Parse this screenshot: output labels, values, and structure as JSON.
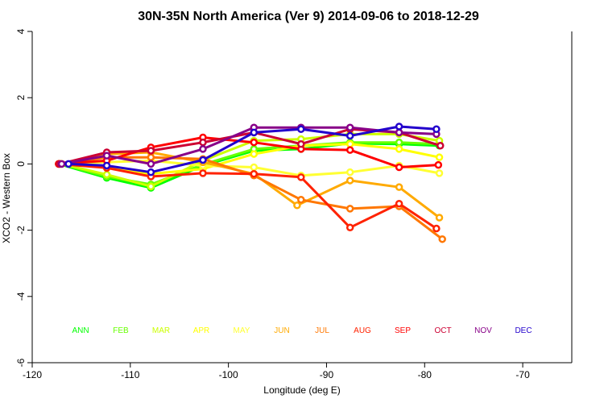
{
  "chart_data": {
    "type": "line",
    "title": "30N-35N North America (Ver 9)   2014-09-06 to 2018-12-29",
    "xlabel": "Longitude (deg E)",
    "ylabel": "XCO2 - Western Box",
    "xlim": [
      -120,
      -65
    ],
    "ylim": [
      -6,
      4
    ],
    "xticks": [
      -120,
      -110,
      -100,
      -90,
      -80,
      -70
    ],
    "yticks": [
      -6,
      -4,
      -2,
      0,
      2,
      4
    ],
    "grid": false,
    "legend_position": "bottom (inside plot, single row)",
    "series": [
      {
        "name": "ANN",
        "color": "#00ff00",
        "x": [
          -117.3,
          -112.4,
          -107.9,
          -102.6,
          -97.4,
          -92.6,
          -87.6,
          -82.6,
          -78.5
        ],
        "y": [
          0,
          -0.42,
          -0.72,
          -0.05,
          0.4,
          0.45,
          0.62,
          0.6,
          0.55
        ]
      },
      {
        "name": "FEB",
        "color": "#66ff00",
        "x": [
          -117.1,
          -112.4,
          -107.9,
          -102.6,
          -97.4,
          -92.6,
          -87.6,
          -82.6,
          -78.5
        ],
        "y": [
          0,
          -0.38,
          -0.62,
          -0.02,
          0.45,
          0.55,
          0.65,
          0.65,
          0.6
        ]
      },
      {
        "name": "MAR",
        "color": "#ccff00",
        "x": [
          -117.0,
          -112.4,
          -107.9,
          -102.6,
          -97.4,
          -92.6,
          -87.6,
          -82.6,
          -78.5
        ],
        "y": [
          0,
          -0.32,
          -0.68,
          0.1,
          0.7,
          0.75,
          0.9,
          0.9,
          0.7
        ]
      },
      {
        "name": "APR",
        "color": "#ffff00",
        "x": [
          -117.0,
          -112.4,
          -107.9,
          -102.6,
          -97.4,
          -92.6,
          -87.6,
          -82.6,
          -78.5
        ],
        "y": [
          0,
          -0.1,
          -0.3,
          -0.15,
          0.3,
          0.55,
          0.6,
          0.45,
          0.2
        ]
      },
      {
        "name": "MAY",
        "color": "#ffff33",
        "x": [
          -117.0,
          -112.4,
          -107.9,
          -102.6,
          -97.4,
          -92.6,
          -87.6,
          -82.6,
          -78.5
        ],
        "y": [
          0,
          0.05,
          0.1,
          -0.05,
          -0.1,
          -0.35,
          -0.25,
          -0.05,
          -0.28
        ]
      },
      {
        "name": "JUN",
        "color": "#ffaa00",
        "x": [
          -117.2,
          -112.4,
          -107.9,
          -102.6,
          -97.4,
          -93.0,
          -87.6,
          -82.6,
          -78.5
        ],
        "y": [
          0,
          0.3,
          0.35,
          0.05,
          -0.3,
          -1.25,
          -0.5,
          -0.7,
          -1.62
        ]
      },
      {
        "name": "JUL",
        "color": "#ff7700",
        "x": [
          -117.2,
          -112.4,
          -107.9,
          -102.6,
          -97.4,
          -92.6,
          -87.6,
          -82.6,
          -78.2
        ],
        "y": [
          0,
          0.2,
          0.2,
          0.15,
          -0.35,
          -1.08,
          -1.35,
          -1.28,
          -2.27
        ]
      },
      {
        "name": "AUG",
        "color": "#ff2200",
        "x": [
          -117.3,
          -112.4,
          -107.9,
          -102.6,
          -97.4,
          -92.6,
          -87.6,
          -82.6,
          -78.8
        ],
        "y": [
          0,
          -0.12,
          -0.38,
          -0.28,
          -0.3,
          -0.4,
          -1.92,
          -1.2,
          -1.95
        ]
      },
      {
        "name": "SEP",
        "color": "#ff0000",
        "x": [
          -117.3,
          -112.4,
          -107.9,
          -102.6,
          -97.4,
          -92.6,
          -87.6,
          -82.6,
          -78.6
        ],
        "y": [
          0,
          0.1,
          0.5,
          0.8,
          0.65,
          0.45,
          0.42,
          -0.1,
          -0.03
        ]
      },
      {
        "name": "OCT",
        "color": "#cc0033",
        "x": [
          -117.2,
          -112.4,
          -107.9,
          -102.6,
          -97.4,
          -92.6,
          -87.6,
          -82.6,
          -78.4
        ],
        "y": [
          0,
          0.35,
          0.4,
          0.65,
          0.95,
          0.6,
          1.05,
          0.95,
          0.55
        ]
      },
      {
        "name": "NOV",
        "color": "#880088",
        "x": [
          -117.0,
          -112.4,
          -107.9,
          -102.6,
          -97.4,
          -92.6,
          -87.6,
          -82.6,
          -78.8
        ],
        "y": [
          0,
          0.25,
          0.0,
          0.45,
          1.1,
          1.1,
          1.1,
          0.95,
          0.9
        ]
      },
      {
        "name": "DEC",
        "color": "#2200cc",
        "x": [
          -116.3,
          -112.4,
          -107.9,
          -102.6,
          -97.4,
          -92.6,
          -87.6,
          -82.6,
          -78.8
        ],
        "y": [
          0,
          -0.05,
          -0.25,
          0.12,
          0.95,
          1.05,
          0.85,
          1.13,
          1.05
        ]
      }
    ]
  }
}
